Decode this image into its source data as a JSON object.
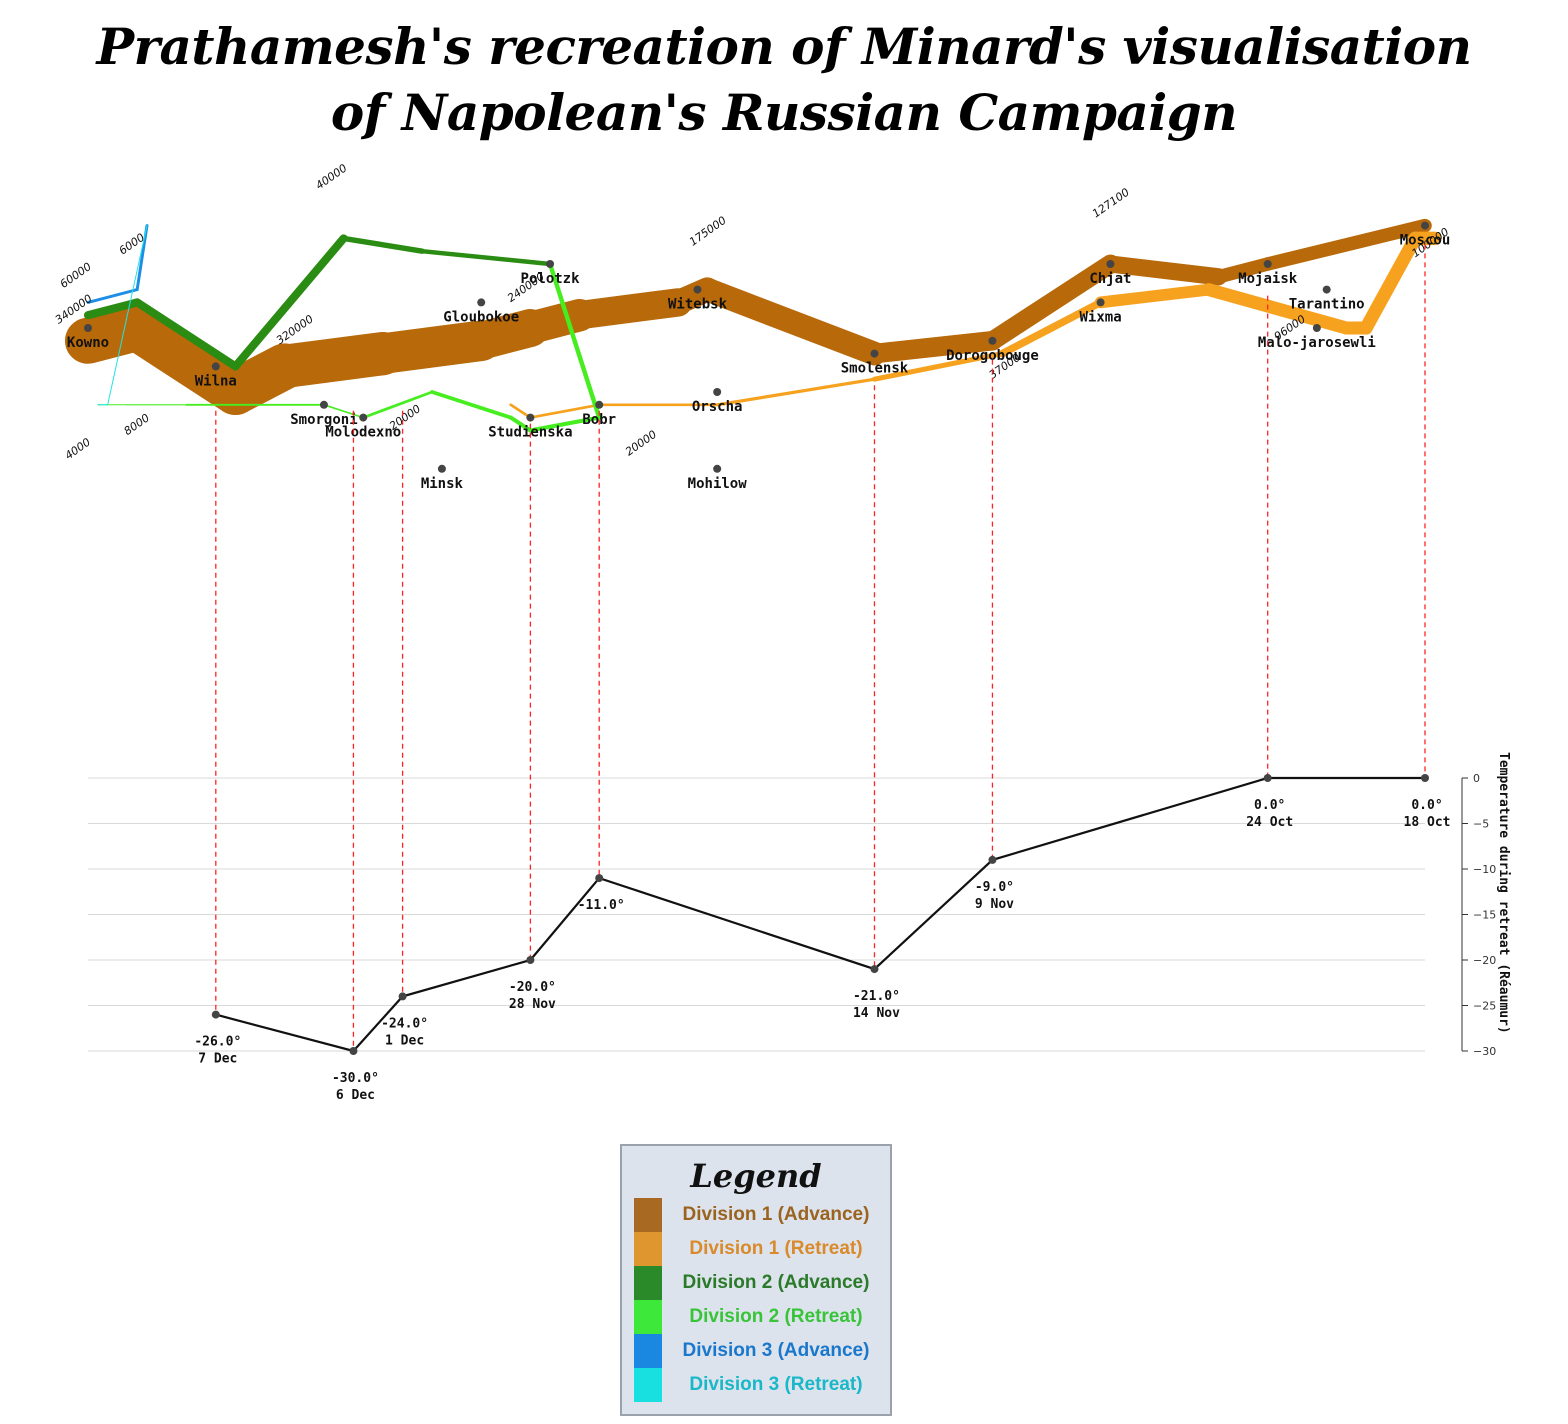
{
  "title": {
    "line1": "Prathamesh's recreation of Minard's visualisation",
    "line2": "of Napolean's Russian Campaign"
  },
  "chart_data": {
    "type": "flow-map",
    "map_bounds": {
      "lon": [
        24.0,
        37.6
      ],
      "lat": [
        53.0,
        56.0
      ]
    },
    "series": [
      {
        "name": "Division 1 (Advance)",
        "color": "#b8690a",
        "division": 1,
        "direction": "A",
        "points": [
          [
            24.0,
            54.9,
            340000
          ],
          [
            24.5,
            55.0,
            340000
          ],
          [
            25.5,
            54.5,
            340000
          ],
          [
            26.0,
            54.7,
            320000
          ],
          [
            27.0,
            54.8,
            300000
          ],
          [
            28.0,
            54.9,
            280000
          ],
          [
            28.5,
            55.0,
            240000
          ],
          [
            29.0,
            55.1,
            210000
          ],
          [
            30.0,
            55.2,
            180000
          ],
          [
            30.3,
            55.3,
            175000
          ],
          [
            32.0,
            54.8,
            145000
          ],
          [
            33.2,
            54.9,
            140000
          ],
          [
            34.4,
            55.5,
            127100
          ],
          [
            35.5,
            55.4,
            100000
          ],
          [
            36.0,
            55.5,
            100000
          ],
          [
            37.6,
            55.8,
            100000
          ]
        ]
      },
      {
        "name": "Division 1 (Retreat)",
        "color": "#f7a21e",
        "division": 1,
        "direction": "R",
        "points": [
          [
            37.7,
            55.7,
            100000
          ],
          [
            37.5,
            55.7,
            98000
          ],
          [
            37.0,
            55.0,
            97000
          ],
          [
            36.8,
            55.0,
            96000
          ],
          [
            35.4,
            55.3,
            87000
          ],
          [
            34.3,
            55.2,
            55000
          ],
          [
            33.3,
            54.8,
            37000
          ],
          [
            32.0,
            54.6,
            24000
          ],
          [
            30.4,
            54.4,
            20000
          ],
          [
            29.2,
            54.4,
            20000
          ],
          [
            28.5,
            54.3,
            20000
          ],
          [
            28.3,
            54.4,
            20000
          ]
        ]
      },
      {
        "name": "Division 2 (Advance)",
        "color": "#2a8c12",
        "division": 2,
        "direction": "A",
        "points": [
          [
            24.0,
            55.1,
            60000
          ],
          [
            24.5,
            55.2,
            60000
          ],
          [
            25.5,
            54.7,
            60000
          ],
          [
            26.6,
            55.7,
            40000
          ],
          [
            27.4,
            55.6,
            33000
          ],
          [
            28.7,
            55.5,
            33000
          ]
        ]
      },
      {
        "name": "Division 2 (Retreat)",
        "color": "#46ee20",
        "division": 2,
        "direction": "R",
        "points": [
          [
            28.7,
            55.5,
            33000
          ],
          [
            29.2,
            54.3,
            30000
          ],
          [
            28.5,
            54.2,
            30000
          ],
          [
            28.3,
            54.3,
            28000
          ],
          [
            27.5,
            54.5,
            20000
          ],
          [
            26.8,
            54.3,
            12000
          ],
          [
            26.4,
            54.4,
            14000
          ],
          [
            25.0,
            54.4,
            8000
          ],
          [
            24.4,
            54.4,
            4000
          ],
          [
            24.2,
            54.4,
            4000
          ],
          [
            24.1,
            54.4,
            4000
          ]
        ]
      },
      {
        "name": "Division 3 (Advance)",
        "color": "#1c8ee6",
        "division": 3,
        "direction": "A",
        "points": [
          [
            24.0,
            55.2,
            22000
          ],
          [
            24.5,
            55.3,
            22000
          ],
          [
            24.6,
            55.8,
            6000
          ]
        ]
      },
      {
        "name": "Division 3 (Retreat)",
        "color": "#1fe3e6",
        "division": 3,
        "direction": "R",
        "points": [
          [
            24.6,
            55.8,
            6000
          ],
          [
            24.2,
            54.4,
            6000
          ],
          [
            24.1,
            54.4,
            6000
          ]
        ]
      }
    ],
    "troop_labels": [
      {
        "text": "340000",
        "lon": 23.7,
        "lat": 55.03
      },
      {
        "text": "60000",
        "lon": 23.75,
        "lat": 55.31
      },
      {
        "text": "6000",
        "lon": 24.35,
        "lat": 55.57
      },
      {
        "text": "40000",
        "lon": 26.35,
        "lat": 56.08
      },
      {
        "text": "320000",
        "lon": 25.95,
        "lat": 54.87
      },
      {
        "text": "240000",
        "lon": 28.3,
        "lat": 55.2
      },
      {
        "text": "175000",
        "lon": 30.15,
        "lat": 55.64
      },
      {
        "text": "127100",
        "lon": 34.25,
        "lat": 55.86
      },
      {
        "text": "100000",
        "lon": 37.5,
        "lat": 55.55
      },
      {
        "text": "96000",
        "lon": 36.1,
        "lat": 54.9
      },
      {
        "text": "37000",
        "lon": 33.2,
        "lat": 54.6
      },
      {
        "text": "20000",
        "lon": 29.5,
        "lat": 54.0
      },
      {
        "text": "20000",
        "lon": 27.1,
        "lat": 54.2
      },
      {
        "text": "8000",
        "lon": 24.4,
        "lat": 54.16
      },
      {
        "text": "4000",
        "lon": 23.8,
        "lat": 53.97
      }
    ],
    "cities": [
      {
        "name": "Kowno",
        "lon": 24.0,
        "lat": 55.0
      },
      {
        "name": "Wilna",
        "lon": 25.3,
        "lat": 54.7
      },
      {
        "name": "Smorgoni",
        "lon": 26.4,
        "lat": 54.4
      },
      {
        "name": "Molodexno",
        "lon": 26.8,
        "lat": 54.3
      },
      {
        "name": "Gloubokoe",
        "lon": 28.0,
        "lat": 55.2
      },
      {
        "name": "Minsk",
        "lon": 27.6,
        "lat": 53.9
      },
      {
        "name": "Studienska",
        "lon": 28.5,
        "lat": 54.3
      },
      {
        "name": "Polotzk",
        "lon": 28.7,
        "lat": 55.5
      },
      {
        "name": "Bobr",
        "lon": 29.2,
        "lat": 54.4
      },
      {
        "name": "Witebsk",
        "lon": 30.2,
        "lat": 55.3
      },
      {
        "name": "Orscha",
        "lon": 30.4,
        "lat": 54.5
      },
      {
        "name": "Mohilow",
        "lon": 30.4,
        "lat": 53.9
      },
      {
        "name": "Smolensk",
        "lon": 32.0,
        "lat": 54.8
      },
      {
        "name": "Dorogobouge",
        "lon": 33.2,
        "lat": 54.9
      },
      {
        "name": "Wixma",
        "lon": 34.3,
        "lat": 55.2
      },
      {
        "name": "Chjat",
        "lon": 34.4,
        "lat": 55.5
      },
      {
        "name": "Mojaisk",
        "lon": 36.0,
        "lat": 55.5
      },
      {
        "name": "Tarantino",
        "lon": 36.6,
        "lat": 55.3
      },
      {
        "name": "Malo-jarosewli",
        "lon": 36.5,
        "lat": 55.0
      },
      {
        "name": "Moscou",
        "lon": 37.6,
        "lat": 55.8
      }
    ],
    "temperature": {
      "axis_title": "Temperature during retreat (Réaumur)",
      "ylim": [
        -30,
        0
      ],
      "yticks": [
        "0",
        "−5",
        "−10",
        "−15",
        "−20",
        "−25",
        "−30"
      ],
      "ytick_values": [
        0,
        -5,
        -10,
        -15,
        -20,
        -25,
        -30
      ],
      "points": [
        {
          "lon": 37.6,
          "temp": 0,
          "temp_label": "0.0°",
          "date": "18 Oct"
        },
        {
          "lon": 36.0,
          "temp": 0,
          "temp_label": "0.0°",
          "date": "24 Oct"
        },
        {
          "lon": 33.2,
          "temp": -9,
          "temp_label": "-9.0°",
          "date": "9 Nov"
        },
        {
          "lon": 32.0,
          "temp": -21,
          "temp_label": "-21.0°",
          "date": "14 Nov"
        },
        {
          "lon": 29.2,
          "temp": -11,
          "temp_label": "-11.0°",
          "date": ""
        },
        {
          "lon": 28.5,
          "temp": -20,
          "temp_label": "-20.0°",
          "date": "28 Nov"
        },
        {
          "lon": 27.2,
          "temp": -24,
          "temp_label": "-24.0°",
          "date": "1 Dec"
        },
        {
          "lon": 26.7,
          "temp": -30,
          "temp_label": "-30.0°",
          "date": "6 Dec"
        },
        {
          "lon": 25.3,
          "temp": -26,
          "temp_label": "-26.0°",
          "date": "7 Dec"
        }
      ]
    }
  },
  "legend": {
    "title": "Legend",
    "items": [
      {
        "label": "Division 1 (Advance)",
        "swatch": "#a86a22",
        "text_color": "#9a6320"
      },
      {
        "label": "Division 1 (Retreat)",
        "swatch": "#e0962e",
        "text_color": "#d98a2b"
      },
      {
        "label": "Division 2 (Advance)",
        "swatch": "#2a8a2a",
        "text_color": "#2a7a2a"
      },
      {
        "label": "Division 2 (Retreat)",
        "swatch": "#3de83a",
        "text_color": "#38c438"
      },
      {
        "label": "Division 3 (Advance)",
        "swatch": "#1a88e0",
        "text_color": "#1a78cc"
      },
      {
        "label": "Division 3 (Retreat)",
        "swatch": "#18e0e0",
        "text_color": "#19b8c8"
      }
    ]
  }
}
